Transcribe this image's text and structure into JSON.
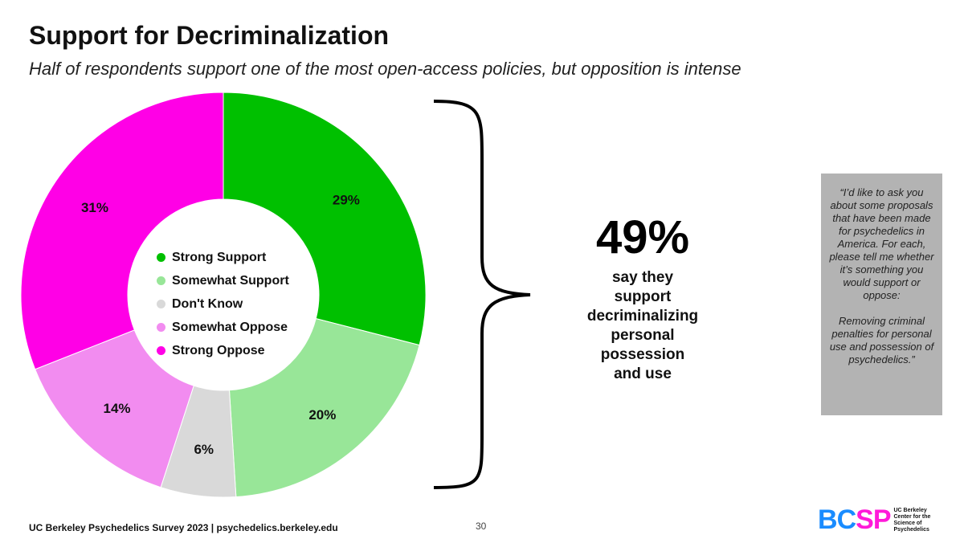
{
  "title": "Support for Decriminalization",
  "subtitle": "Half of respondents support one of the most open-access policies, but opposition is intense",
  "chart_data": {
    "type": "pie",
    "variant": "donut",
    "categories": [
      "Strong Support",
      "Somewhat Support",
      "Don't Know",
      "Somewhat Oppose",
      "Strong Oppose"
    ],
    "values": [
      29,
      20,
      6,
      14,
      31
    ],
    "labels": [
      "29%",
      "20%",
      "6%",
      "14%",
      "31%"
    ],
    "colors": [
      "#00c000",
      "#98e698",
      "#d9d9d9",
      "#f28cf0",
      "#ff00e6"
    ],
    "legend_placement": "center"
  },
  "callout": {
    "percent": "49%",
    "text_lines": [
      "say they",
      "support",
      "decriminalizing",
      "personal",
      "possession",
      "and use"
    ]
  },
  "quote": {
    "question": "“I’d like to ask you about some proposals that have been made for psychedelics in America. For each, please tell me whether it’s something you would support or oppose:",
    "item": "Removing criminal penalties for personal use and possession of psychedelics.”"
  },
  "footer": "UC Berkeley Psychedelics Survey 2023 | psychedelics.berkeley.edu",
  "page_number": "30",
  "logo": {
    "letters": [
      "B",
      "C",
      "S",
      "P"
    ],
    "letter_colors": [
      "#1a8cff",
      "#1a8cff",
      "#ff1ad9",
      "#ff1ad9"
    ],
    "text_lines": [
      "UC Berkeley",
      "Center for the",
      "Science of",
      "Psychedelics"
    ]
  }
}
